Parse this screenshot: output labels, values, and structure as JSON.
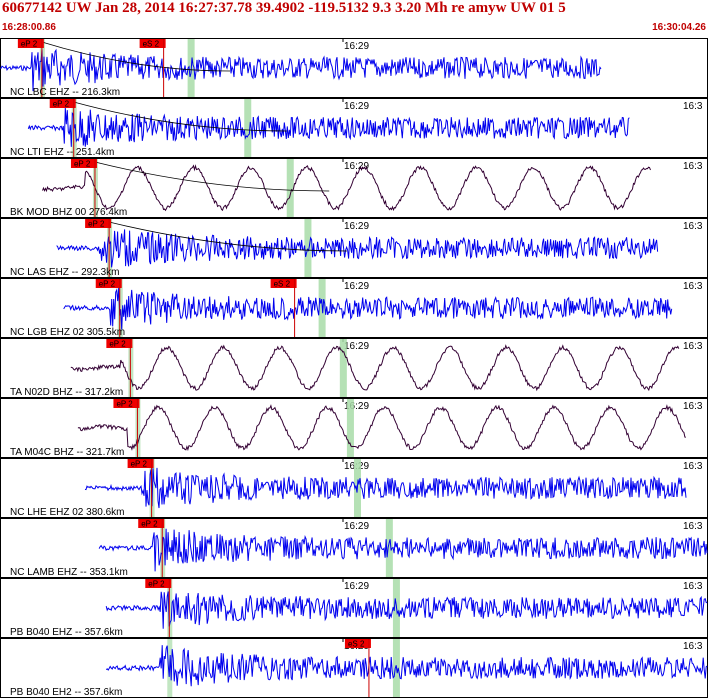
{
  "header": {
    "title": "60677142 UW Jan 28, 2014 16:27:37.78   39.4902 -119.5132  9.3 3.20 Mh re amyw UW 01   5",
    "start_time": "16:28:00.86",
    "end_time": "16:30:04.26"
  },
  "colors": {
    "trace_ehz": "#0000ee",
    "trace_bhz": "#330033",
    "pick_box": "#ee0000",
    "pick_line": "#cc0000",
    "window": "#a8dca8",
    "header": "#c00000"
  },
  "chart_data": {
    "type": "line",
    "title": "60677142 UW Jan 28, 2014 16:27:37.78   39.4902 -119.5132  9.3 3.20 Mh re amyw UW 01   5",
    "x_range": [
      "16:28:00.86",
      "16:30:04.26"
    ],
    "tick_labels": [
      "16:29",
      "16:3"
    ],
    "traces": [
      {
        "label": "NC LBC EHZ -- 216.3km",
        "kind": "EHZ",
        "distance_km": 216.3,
        "picks": [
          "eP 2",
          "eS 2"
        ],
        "trace_start": 0.0,
        "trace_end": 0.85,
        "p_frac": 0.045,
        "s_frac": 0.265,
        "has_curve": true
      },
      {
        "label": "NC LTI EHZ -- 251.4km",
        "kind": "EHZ",
        "distance_km": 251.4,
        "picks": [
          "eP 2"
        ],
        "trace_start": 0.04,
        "trace_end": 0.89,
        "p_frac": 0.09,
        "s_frac": 0.345,
        "has_curve": true
      },
      {
        "label": "BK MOD BHZ 00 276.4km",
        "kind": "BHZ",
        "distance_km": 276.4,
        "picks": [
          "eP 2"
        ],
        "trace_start": 0.06,
        "trace_end": 0.92,
        "p_frac": 0.12,
        "s_frac": 0.405,
        "has_curve": true
      },
      {
        "label": "NC LAS EHZ -- 292.3km",
        "kind": "EHZ",
        "distance_km": 292.3,
        "picks": [
          "eP 2"
        ],
        "trace_start": 0.08,
        "trace_end": 0.93,
        "p_frac": 0.14,
        "s_frac": 0.43,
        "has_curve": true
      },
      {
        "label": "NC LGB EHZ 02 305.5km",
        "kind": "EHZ",
        "distance_km": 305.5,
        "picks": [
          "eP 2",
          "eS 2"
        ],
        "trace_start": 0.09,
        "trace_end": 0.95,
        "p_frac": 0.155,
        "s_frac": 0.45,
        "has_curve": false
      },
      {
        "label": "TA N02D BHZ -- 317.2km",
        "kind": "BHZ",
        "distance_km": 317.2,
        "picks": [
          "eP 2"
        ],
        "trace_start": 0.1,
        "trace_end": 0.96,
        "p_frac": 0.17,
        "s_frac": 0.48,
        "has_curve": false
      },
      {
        "label": "TA M04C BHZ -- 321.7km",
        "kind": "BHZ",
        "distance_km": 321.7,
        "picks": [
          "eP 2"
        ],
        "trace_start": 0.11,
        "trace_end": 0.97,
        "p_frac": 0.18,
        "s_frac": 0.49,
        "has_curve": false
      },
      {
        "label": "NC LHE EHZ 02 380.6km",
        "kind": "EHZ",
        "distance_km": 380.6,
        "picks": [
          "eP 2"
        ],
        "trace_start": 0.12,
        "trace_end": 0.97,
        "p_frac": 0.2,
        "s_frac": 0.5,
        "has_curve": false
      },
      {
        "label": "NC LAMB EHZ -- 353.1km",
        "kind": "EHZ",
        "distance_km": 353.1,
        "picks": [
          "eP 2"
        ],
        "trace_start": 0.14,
        "trace_end": 1.0,
        "p_frac": 0.215,
        "s_frac": 0.545,
        "has_curve": false
      },
      {
        "label": "PB B040 EHZ -- 357.6km",
        "kind": "EHZ",
        "distance_km": 357.6,
        "picks": [
          "eP 2"
        ],
        "trace_start": 0.15,
        "trace_end": 1.0,
        "p_frac": 0.225,
        "s_frac": 0.555,
        "has_curve": false
      },
      {
        "label": "PB B040 EH2 -- 357.6km",
        "kind": "EHZ",
        "distance_km": 357.6,
        "picks": [
          "eS 2"
        ],
        "trace_start": 0.15,
        "trace_end": 1.0,
        "p_frac": 0.225,
        "s_frac": 0.555,
        "has_curve": false
      }
    ]
  }
}
